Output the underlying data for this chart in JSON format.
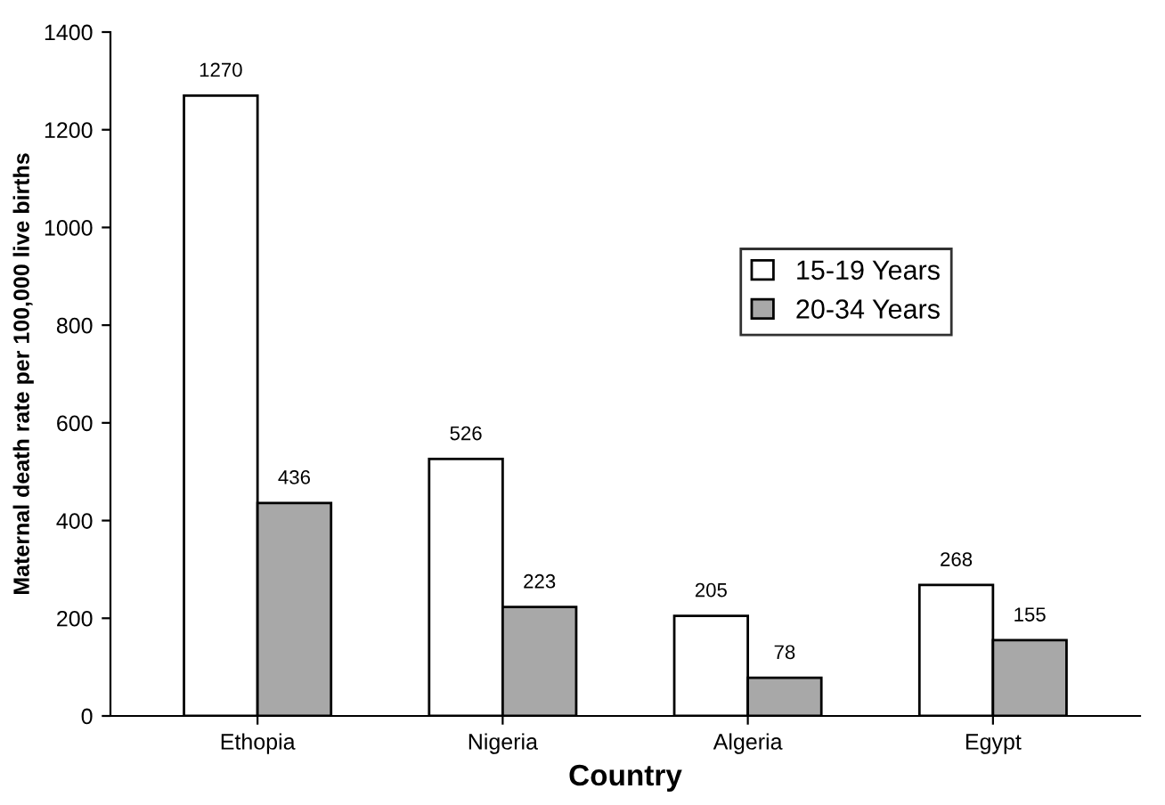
{
  "chart_data": {
    "type": "bar",
    "xlabel": "Country",
    "ylabel": "Maternal death rate per 100,000 live births",
    "categories": [
      "Ethopia",
      "Nigeria",
      "Algeria",
      "Egypt"
    ],
    "series": [
      {
        "name": "15-19 Years",
        "color": "#ffffff",
        "values": [
          1270,
          526,
          205,
          268
        ]
      },
      {
        "name": "20-34 Years",
        "color": "#a8a8a8",
        "values": [
          436,
          223,
          78,
          155
        ]
      }
    ],
    "ylim": [
      0,
      1400
    ],
    "yticks": [
      0,
      200,
      400,
      600,
      800,
      1000,
      1200,
      1400
    ],
    "grid": false,
    "legend": "right",
    "data_labels": true
  }
}
